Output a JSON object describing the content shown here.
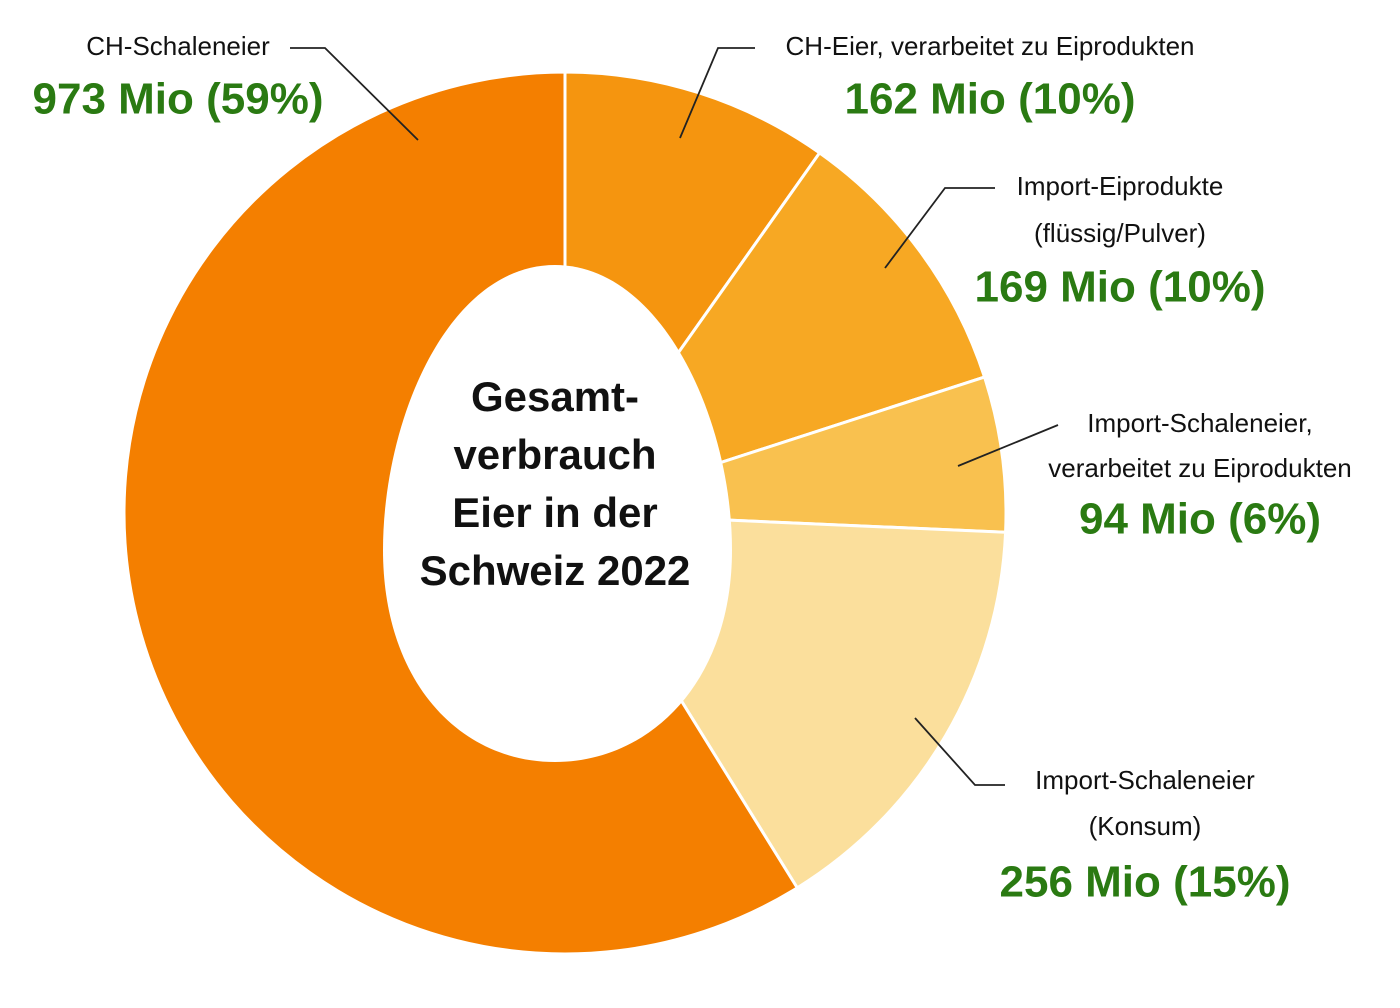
{
  "chart_data": {
    "type": "donut",
    "title": [
      "Gesamt-",
      "verbrauch",
      "Eier in der",
      "Schweiz 2022"
    ],
    "categories": [
      [
        "CH-Eier, verarbeitet zu Eiprodukten"
      ],
      [
        "Import-Eiprodukte",
        "(flüssig/Pulver)"
      ],
      [
        "Import-Schaleneier,",
        "verarbeitet zu Eiprodukten"
      ],
      [
        "Import-Schaleneier",
        "(Konsum)"
      ],
      [
        "CH-Schaleneier"
      ]
    ],
    "values": [
      162,
      169,
      94,
      256,
      973
    ],
    "value_labels": [
      "162 Mio (10%)",
      "169 Mio (10%)",
      "94 Mio (6%)",
      "256 Mio (15%)",
      "973 Mio (59%)"
    ],
    "colors": [
      "#f5950f",
      "#f7a823",
      "#f9c14f",
      "#fbdf9c",
      "#f47f00"
    ],
    "label_color": "#2a7a12"
  }
}
